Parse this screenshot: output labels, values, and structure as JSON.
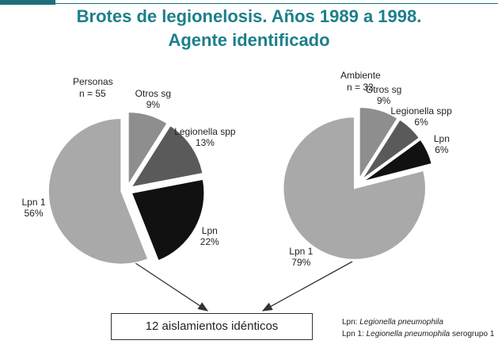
{
  "header": {
    "title_lines": [
      "Brotes de legionelosis. Años 1989 a 1998.",
      "Agente identificado"
    ]
  },
  "chart_data": [
    {
      "type": "pie",
      "title": "Personas",
      "subtitle": "n = 55",
      "categories": [
        "Otros sg",
        "Legionella spp",
        "Lpn",
        "Lpn 1"
      ],
      "values": [
        9,
        13,
        22,
        56
      ],
      "value_labels": [
        "9%",
        "13%",
        "22%",
        "56%"
      ],
      "colors": [
        "#8e8e8e",
        "#5a5a5a",
        "#111111",
        "#a9a9a9"
      ]
    },
    {
      "type": "pie",
      "title": "Ambiente",
      "subtitle": "n = 32",
      "categories": [
        "Otros sg",
        "Legionella spp",
        "Lpn",
        "Lpn 1"
      ],
      "values": [
        9,
        6,
        6,
        79
      ],
      "value_labels": [
        "9%",
        "6%",
        "6%",
        "79%"
      ],
      "colors": [
        "#8e8e8e",
        "#5a5a5a",
        "#111111",
        "#a9a9a9"
      ]
    }
  ],
  "box": "12 aislamientos idénticos",
  "notes": [
    {
      "abbr": "Lpn:",
      "text": "Legionella pneumophila"
    },
    {
      "abbr": "Lpn 1:",
      "text": "Legionella pneumophila",
      "suffix": "serogrupo 1"
    }
  ]
}
